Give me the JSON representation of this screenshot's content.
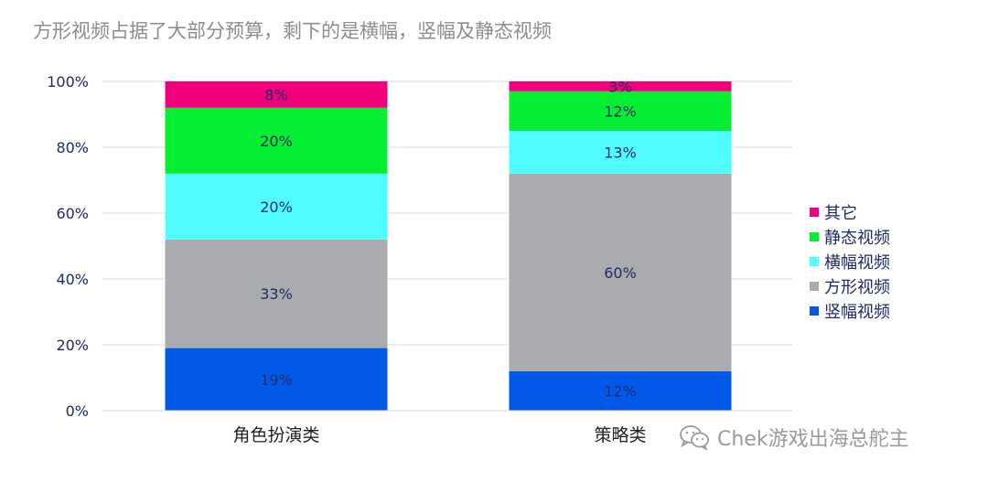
{
  "chart_data": {
    "type": "bar",
    "stacked": true,
    "title": "方形视频占据了大部分预算，剩下的是横幅，竖幅及静态视频",
    "categories": [
      "角色扮演类",
      "策略类"
    ],
    "series": [
      {
        "name": "竖幅视频",
        "values": [
          19,
          12
        ],
        "labels": [
          "19%",
          "12%"
        ],
        "color": "#0059e8"
      },
      {
        "name": "方形视频",
        "values": [
          33,
          60
        ],
        "labels": [
          "33%",
          "60%"
        ],
        "color": "#a9abae"
      },
      {
        "name": "横幅视频",
        "values": [
          20,
          13
        ],
        "labels": [
          "20%",
          "13%"
        ],
        "color": "#4ffcff"
      },
      {
        "name": "静态视频",
        "values": [
          20,
          12
        ],
        "labels": [
          "20%",
          "12%"
        ],
        "color": "#06ee31"
      },
      {
        "name": "其它",
        "values": [
          8,
          3
        ],
        "labels": [
          "8%",
          "3%"
        ],
        "color": "#f1007e"
      }
    ],
    "ylim": [
      0,
      100
    ],
    "yticks": [
      0,
      20,
      40,
      60,
      80,
      100
    ],
    "ytick_labels": [
      "0%",
      "20%",
      "40%",
      "60%",
      "80%",
      "100%"
    ],
    "grid": true,
    "legend_position": "right",
    "legend_order": [
      "其它",
      "静态视频",
      "横幅视频",
      "方形视频",
      "竖幅视频"
    ]
  },
  "watermark": {
    "icon": "wechat-icon",
    "text": "Chek游戏出海总舵主"
  },
  "colors": {
    "axis_text": "#1f2a6b",
    "grid": "#d9d9d9",
    "title": "#8a8d91"
  }
}
